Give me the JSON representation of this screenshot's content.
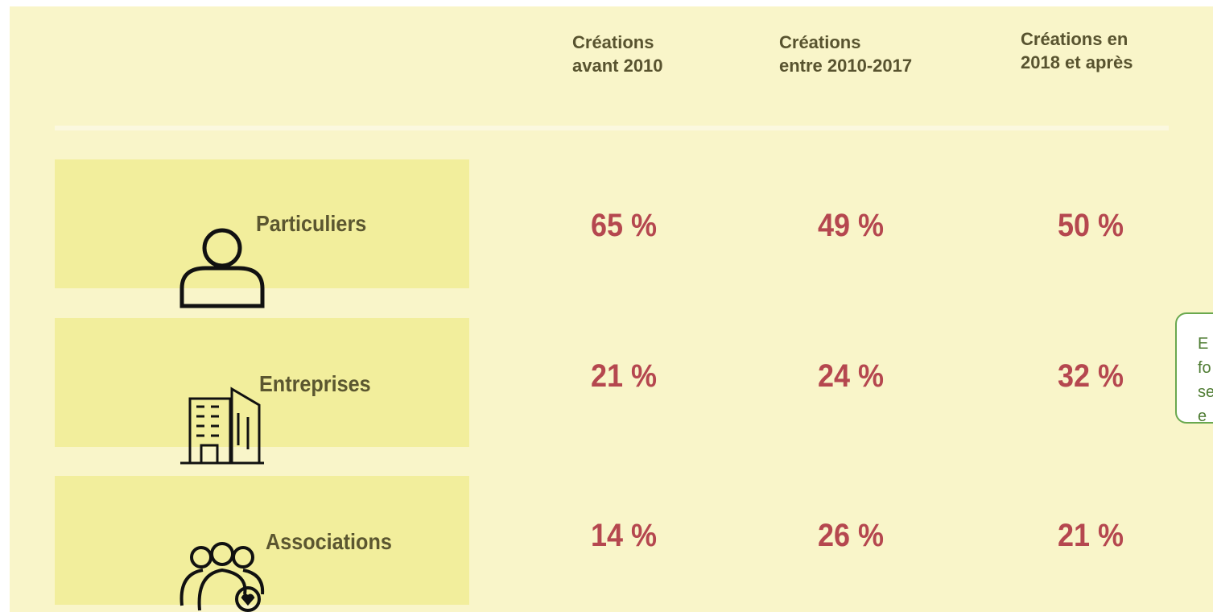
{
  "table": {
    "columns": [
      "Créations\navant 2010",
      "Créations\nentre 2010-2017",
      "Créations en\n2018 et après"
    ],
    "rows": [
      {
        "label": "Particuliers",
        "cells": [
          "65 %",
          "49 %",
          "50 %"
        ]
      },
      {
        "label": "Entreprises",
        "cells": [
          "21 %",
          "24 %",
          "32 %"
        ]
      },
      {
        "label": "Associations",
        "cells": [
          "14 %",
          "26 %",
          "21 %"
        ]
      }
    ]
  },
  "callout": {
    "lines": [
      "E",
      "fo",
      "se",
      "e"
    ]
  }
}
